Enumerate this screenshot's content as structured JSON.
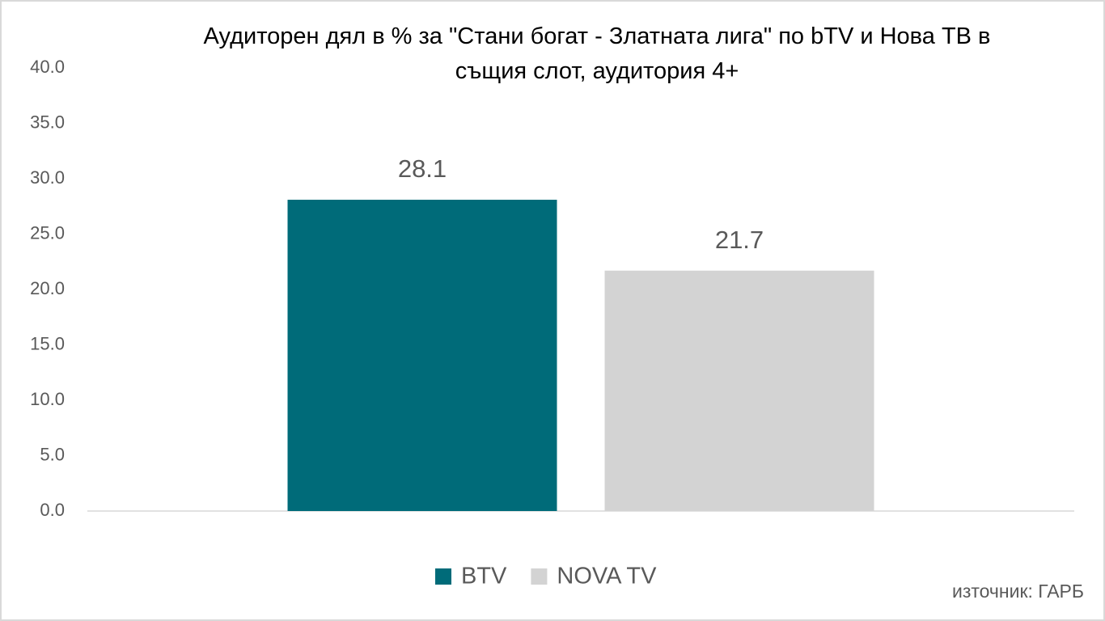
{
  "chart_data": {
    "type": "bar",
    "title": "Аудиторен дял в % за \"Стани богат - Златната лига\" по bTV и Нова ТВ в същия слот, аудитория 4+",
    "categories": [
      null
    ],
    "series": [
      {
        "name": "BTV",
        "color": "#006b79",
        "values": [
          28.1
        ]
      },
      {
        "name": "NOVA TV",
        "color": "#d3d3d3",
        "values": [
          21.7
        ]
      }
    ],
    "ylim": [
      0,
      40
    ],
    "yticks": [
      {
        "value": 0,
        "label": "0.0"
      },
      {
        "value": 5,
        "label": "5.0"
      },
      {
        "value": 10,
        "label": "10.0"
      },
      {
        "value": 15,
        "label": "15.0"
      },
      {
        "value": 20,
        "label": "20.0"
      },
      {
        "value": 25,
        "label": "25.0"
      },
      {
        "value": 30,
        "label": "30.0"
      },
      {
        "value": 35,
        "label": "35.0"
      },
      {
        "value": 40,
        "label": "40.0"
      }
    ],
    "grid": false,
    "legend": "bottom",
    "annotations": [
      "източник: ГАРБ"
    ]
  }
}
